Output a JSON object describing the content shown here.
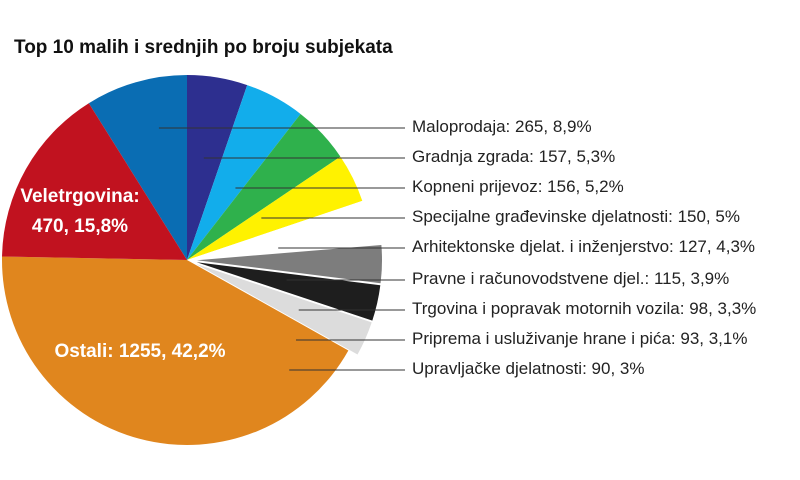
{
  "chart_data": {
    "type": "pie",
    "title": "Top 10 malih i srednjih po broju subjekata",
    "categories": [
      "Maloprodaja:",
      "Gradnja zgrada:",
      "Kopneni prijevoz:",
      "Specijalne građevinske djelatnosti:",
      "Arhitektonske djelat. i inženjerstvo:",
      "Pravne i računovodstvene djel.:",
      "Trgovina i popravak motornih vozila:",
      "Priprema i usluživanje hrane i pića:",
      "Upravljačke djelatnosti:",
      "Ostali:",
      "Veletrgovina:"
    ],
    "values": [
      265,
      157,
      156,
      150,
      127,
      115,
      98,
      93,
      90,
      1255,
      470
    ],
    "value_labels": [
      "265, 8,9%",
      "157, 5,3%",
      "156, 5,2%",
      "150, 5%",
      "127, 4,3%",
      "115, 3,9%",
      "98, 3,3%",
      "93, 3,1%",
      "90, 3%",
      "1255, 42,2%",
      "470, 15,8%"
    ],
    "colors": [
      "#0a6db3",
      "#2d2f8f",
      "#12adeb",
      "#2fb14c",
      "#fff200",
      "#ffffff",
      "#7d7d7d",
      "#1e1e1e",
      "#dcdcdc",
      "#e0861e",
      "#c1121f"
    ]
  }
}
